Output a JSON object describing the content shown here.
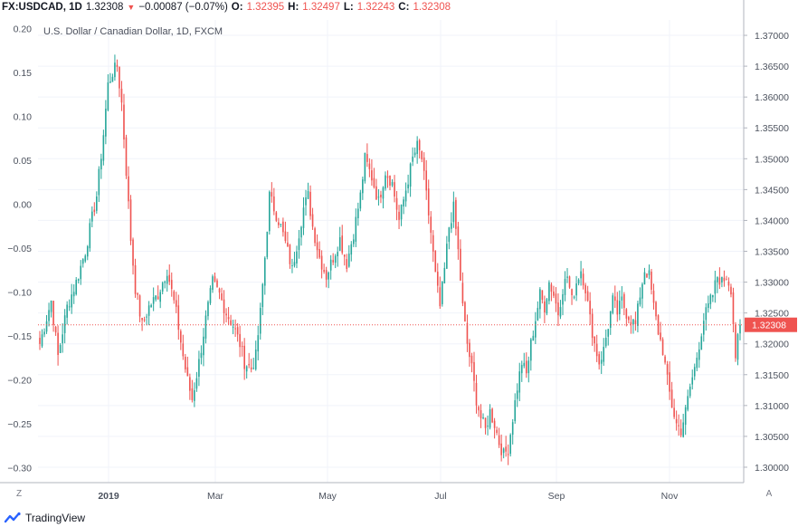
{
  "header": {
    "symbol": "FX:USDCAD, 1D",
    "last": "1.32308",
    "change": "−0.00087 (−0.07%)",
    "open_label": "O:",
    "open_value": "1.32395",
    "high_label": "H:",
    "high_value": "1.32497",
    "low_label": "L:",
    "low_value": "1.32243",
    "close_label": "C:",
    "close_value": "1.32308",
    "down_arrow": "▼"
  },
  "subtitle": "U.S. Dollar / Canadian Dollar, 1D, FXCM",
  "controls": {
    "left_button": "Z",
    "right_button": "A"
  },
  "footer": {
    "brand": "TradingView",
    "logo_icon": "tradingview-logo-icon"
  },
  "colors": {
    "up": "#26a69a",
    "down": "#ef5350",
    "price_tag": "#ef5350",
    "grid": "#f0f3fa",
    "axis_text": "#4c525e"
  },
  "chart_data": {
    "type": "candlestick",
    "title": "U.S. Dollar / Canadian Dollar, 1D, FXCM",
    "right_axis": {
      "ticks": [
        "1.37000",
        "1.36500",
        "1.36000",
        "1.35500",
        "1.35000",
        "1.34500",
        "1.34000",
        "1.33500",
        "1.33000",
        "1.32500",
        "1.32000",
        "1.31500",
        "1.31000",
        "1.30500",
        "1.30000"
      ],
      "ylim": [
        1.2975,
        1.3725
      ]
    },
    "left_axis": {
      "ticks": [
        "0.20",
        "0.15",
        "0.10",
        "0.05",
        "0.00",
        "−0.05",
        "−0.10",
        "−0.15",
        "−0.20",
        "−0.25",
        "−0.30"
      ],
      "ylim": [
        -0.317,
        0.21
      ]
    },
    "x_ticks": [
      "2019",
      "Mar",
      "May",
      "Jul",
      "Sep",
      "Nov"
    ],
    "last_price": 1.32308,
    "last_price_label": "1.32308",
    "anchors": [
      [
        0,
        1.32
      ],
      [
        5,
        1.327
      ],
      [
        8,
        1.318
      ],
      [
        12,
        1.326
      ],
      [
        16,
        1.33
      ],
      [
        20,
        1.335
      ],
      [
        25,
        1.344
      ],
      [
        28,
        1.354
      ],
      [
        30,
        1.362
      ],
      [
        32,
        1.364
      ],
      [
        34,
        1.365
      ],
      [
        36,
        1.359
      ],
      [
        38,
        1.348
      ],
      [
        40,
        1.337
      ],
      [
        42,
        1.329
      ],
      [
        45,
        1.323
      ],
      [
        48,
        1.326
      ],
      [
        52,
        1.328
      ],
      [
        56,
        1.332
      ],
      [
        60,
        1.325
      ],
      [
        63,
        1.318
      ],
      [
        65,
        1.314
      ],
      [
        67,
        1.311
      ],
      [
        70,
        1.317
      ],
      [
        73,
        1.324
      ],
      [
        76,
        1.33
      ],
      [
        79,
        1.328
      ],
      [
        82,
        1.325
      ],
      [
        85,
        1.323
      ],
      [
        88,
        1.32
      ],
      [
        90,
        1.317
      ],
      [
        93,
        1.316
      ],
      [
        95,
        1.318
      ],
      [
        97,
        1.325
      ],
      [
        99,
        1.334
      ],
      [
        101,
        1.344
      ],
      [
        103,
        1.342
      ],
      [
        106,
        1.339
      ],
      [
        109,
        1.335
      ],
      [
        111,
        1.332
      ],
      [
        113,
        1.336
      ],
      [
        116,
        1.342
      ],
      [
        118,
        1.344
      ],
      [
        120,
        1.339
      ],
      [
        123,
        1.334
      ],
      [
        126,
        1.331
      ],
      [
        129,
        1.334
      ],
      [
        132,
        1.337
      ],
      [
        135,
        1.333
      ],
      [
        138,
        1.338
      ],
      [
        141,
        1.344
      ],
      [
        143,
        1.35
      ],
      [
        146,
        1.347
      ],
      [
        149,
        1.343
      ],
      [
        152,
        1.348
      ],
      [
        155,
        1.346
      ],
      [
        158,
        1.34
      ],
      [
        161,
        1.345
      ],
      [
        164,
        1.35
      ],
      [
        166,
        1.352
      ],
      [
        168,
        1.35
      ],
      [
        170,
        1.344
      ],
      [
        172,
        1.338
      ],
      [
        174,
        1.331
      ],
      [
        176,
        1.326
      ],
      [
        178,
        1.332
      ],
      [
        180,
        1.339
      ],
      [
        182,
        1.342
      ],
      [
        184,
        1.335
      ],
      [
        186,
        1.326
      ],
      [
        188,
        1.32
      ],
      [
        190,
        1.316
      ],
      [
        192,
        1.311
      ],
      [
        194,
        1.308
      ],
      [
        196,
        1.306
      ],
      [
        198,
        1.309
      ],
      [
        200,
        1.307
      ],
      [
        202,
        1.304
      ],
      [
        204,
        1.302
      ],
      [
        206,
        1.303
      ],
      [
        208,
        1.308
      ],
      [
        210,
        1.313
      ],
      [
        212,
        1.317
      ],
      [
        214,
        1.315
      ],
      [
        216,
        1.32
      ],
      [
        218,
        1.324
      ],
      [
        220,
        1.328
      ],
      [
        222,
        1.326
      ],
      [
        224,
        1.33
      ],
      [
        226,
        1.328
      ],
      [
        228,
        1.325
      ],
      [
        230,
        1.329
      ],
      [
        232,
        1.331
      ],
      [
        234,
        1.327
      ],
      [
        236,
        1.33
      ],
      [
        238,
        1.332
      ],
      [
        240,
        1.329
      ],
      [
        242,
        1.324
      ],
      [
        244,
        1.32
      ],
      [
        246,
        1.317
      ],
      [
        248,
        1.319
      ],
      [
        250,
        1.323
      ],
      [
        252,
        1.327
      ],
      [
        254,
        1.325
      ],
      [
        256,
        1.327
      ],
      [
        258,
        1.325
      ],
      [
        260,
        1.324
      ],
      [
        262,
        1.323
      ],
      [
        264,
        1.328
      ],
      [
        266,
        1.332
      ],
      [
        268,
        1.331
      ],
      [
        270,
        1.326
      ],
      [
        272,
        1.322
      ],
      [
        274,
        1.319
      ],
      [
        276,
        1.314
      ],
      [
        278,
        1.31
      ],
      [
        280,
        1.307
      ],
      [
        282,
        1.306
      ],
      [
        284,
        1.309
      ],
      [
        286,
        1.313
      ],
      [
        288,
        1.316
      ],
      [
        290,
        1.32
      ],
      [
        292,
        1.324
      ],
      [
        294,
        1.326
      ],
      [
        296,
        1.328
      ],
      [
        298,
        1.331
      ],
      [
        300,
        1.33
      ],
      [
        302,
        1.331
      ],
      [
        304,
        1.329
      ],
      [
        306,
        1.318
      ],
      [
        308,
        1.323
      ]
    ]
  }
}
